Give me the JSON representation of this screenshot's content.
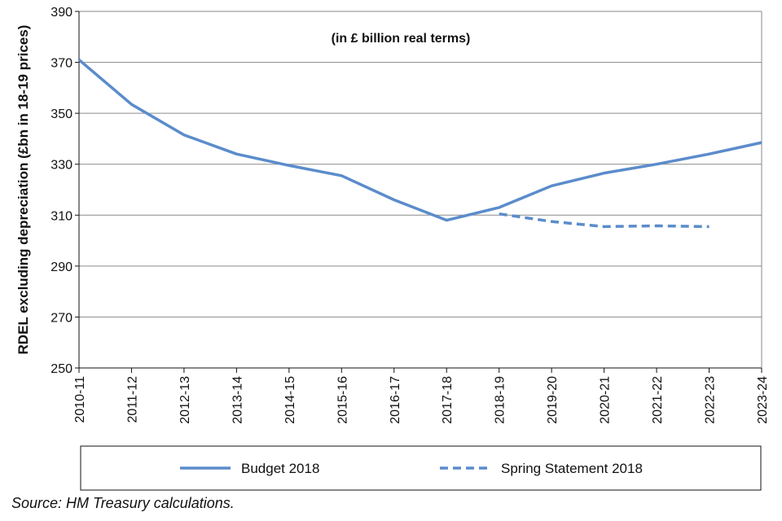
{
  "chart_data": {
    "type": "line",
    "annotation": "(in £ billion real terms)",
    "xlabel": "",
    "ylabel": "RDEL excluding depreciation (£bn in 18-19 prices)",
    "ylim": [
      250,
      390
    ],
    "yticks": [
      250,
      270,
      290,
      310,
      330,
      350,
      370,
      390
    ],
    "categories": [
      "2010-11",
      "2011-12",
      "2012-13",
      "2013-14",
      "2014-15",
      "2015-16",
      "2016-17",
      "2017-18",
      "2018-19",
      "2019-20",
      "2020-21",
      "2021-22",
      "2022-23",
      "2023-24"
    ],
    "grid": "horizontal",
    "legend_position": "bottom",
    "series": [
      {
        "name": "Budget 2018",
        "style": "solid",
        "color": "#5b8ccb",
        "values": [
          371,
          353.5,
          341.5,
          334,
          329.5,
          325.5,
          316,
          308,
          313,
          321.5,
          326.5,
          330,
          334,
          338.5
        ]
      },
      {
        "name": "Spring Statement 2018",
        "style": "dashed",
        "color": "#5b8ccb",
        "values": [
          null,
          null,
          null,
          null,
          null,
          null,
          null,
          null,
          310.5,
          307.5,
          305.5,
          305.8,
          305.5,
          null
        ]
      }
    ]
  },
  "source": "Source: HM Treasury calculations."
}
